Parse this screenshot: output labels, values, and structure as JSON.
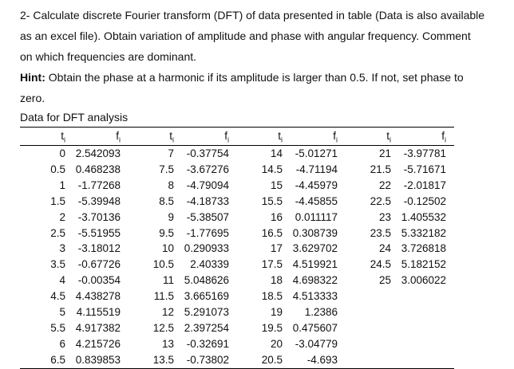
{
  "page": {
    "problem_lines": [
      "2- Calculate discrete Fourier transform (DFT) of data presented in table (Data is also available",
      "as an excel file). Obtain variation of amplitude and phase with angular frequency. Comment",
      "on which frequencies are dominant."
    ],
    "hint_label": "Hint:",
    "hint_lines": [
      " Obtain the phase at a harmonic if its amplitude is larger than 0.5. If not, set phase to",
      "zero."
    ],
    "table_title": "Data for DFT analysis"
  },
  "table": {
    "header": {
      "t_label": "t",
      "f_label": "f",
      "sub_label": "i"
    },
    "pairs": [
      {
        "rows": [
          [
            "0",
            "2.542093"
          ],
          [
            "0.5",
            "0.468238"
          ],
          [
            "1",
            "-1.77268"
          ],
          [
            "1.5",
            "-5.39948"
          ],
          [
            "2",
            "-3.70136"
          ],
          [
            "2.5",
            "-5.51955"
          ],
          [
            "3",
            "-3.18012"
          ],
          [
            "3.5",
            "-0.67726"
          ],
          [
            "4",
            "-0.00354"
          ],
          [
            "4.5",
            "4.438278"
          ],
          [
            "5",
            "4.115519"
          ],
          [
            "5.5",
            "4.917382"
          ],
          [
            "6",
            "4.215726"
          ],
          [
            "6.5",
            "0.839853"
          ]
        ]
      },
      {
        "rows": [
          [
            "7",
            "-0.37754"
          ],
          [
            "7.5",
            "-3.67276"
          ],
          [
            "8",
            "-4.79094"
          ],
          [
            "8.5",
            "-4.18733"
          ],
          [
            "9",
            "-5.38507"
          ],
          [
            "9.5",
            "-1.77695"
          ],
          [
            "10",
            "0.290933"
          ],
          [
            "10.5",
            "2.40339"
          ],
          [
            "11",
            "5.048626"
          ],
          [
            "11.5",
            "3.665169"
          ],
          [
            "12",
            "5.291073"
          ],
          [
            "12.5",
            "2.397254"
          ],
          [
            "13",
            "-0.32691"
          ],
          [
            "13.5",
            "-0.73802"
          ]
        ]
      },
      {
        "rows": [
          [
            "14",
            "-5.01271"
          ],
          [
            "14.5",
            "-4.71194"
          ],
          [
            "15",
            "-4.45979"
          ],
          [
            "15.5",
            "-4.45855"
          ],
          [
            "16",
            "0.011117"
          ],
          [
            "16.5",
            "0.308739"
          ],
          [
            "17",
            "3.629702"
          ],
          [
            "17.5",
            "4.519921"
          ],
          [
            "18",
            "4.698322"
          ],
          [
            "18.5",
            "4.513333"
          ],
          [
            "19",
            "1.2386"
          ],
          [
            "19.5",
            "0.475607"
          ],
          [
            "20",
            "-3.04779"
          ],
          [
            "20.5",
            "-4.693"
          ]
        ]
      },
      {
        "rows": [
          [
            "21",
            "-3.97781"
          ],
          [
            "21.5",
            "-5.71671"
          ],
          [
            "22",
            "-2.01817"
          ],
          [
            "22.5",
            "-0.12502"
          ],
          [
            "23",
            "1.405532"
          ],
          [
            "23.5",
            "5.332182"
          ],
          [
            "24",
            "3.726818"
          ],
          [
            "24.5",
            "5.182152"
          ],
          [
            "25",
            "3.006022"
          ]
        ]
      }
    ]
  }
}
